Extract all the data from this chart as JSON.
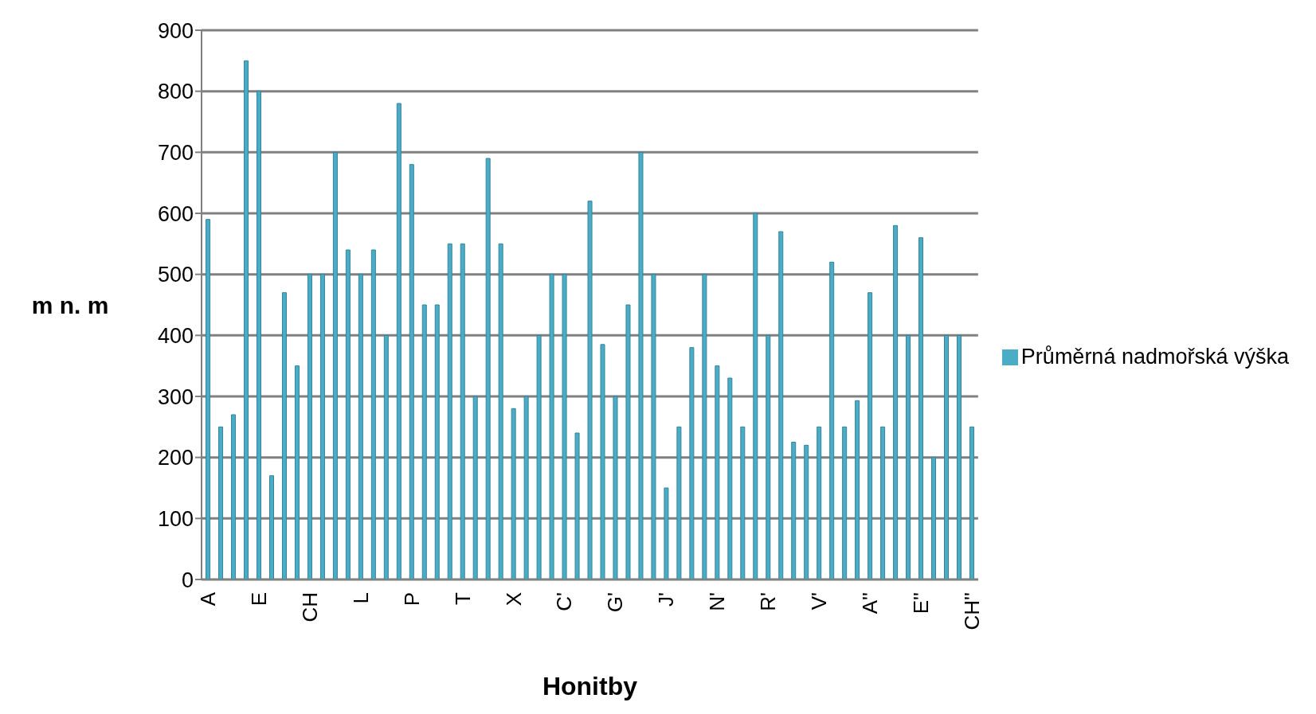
{
  "chart_data": {
    "type": "bar",
    "xlabel": "Honitby",
    "ylabel": "m n. m",
    "categories": [
      "A",
      null,
      null,
      null,
      "E",
      null,
      null,
      null,
      "CH",
      null,
      null,
      null,
      "L",
      null,
      null,
      null,
      "P",
      null,
      null,
      null,
      "T",
      null,
      null,
      null,
      "X",
      null,
      null,
      null,
      "C'",
      null,
      null,
      null,
      "G'",
      null,
      null,
      null,
      "J'",
      null,
      null,
      null,
      "N'",
      null,
      null,
      null,
      "R'",
      null,
      null,
      null,
      "V'",
      null,
      null,
      null,
      "A''",
      null,
      null,
      null,
      "E''",
      null,
      null,
      null,
      "CH''"
    ],
    "series": [
      {
        "name": "Průměrná nadmořská výška",
        "color": "#4bacc6",
        "values": [
          590,
          250,
          270,
          850,
          800,
          170,
          470,
          350,
          500,
          500,
          700,
          540,
          500,
          540,
          400,
          780,
          680,
          450,
          450,
          550,
          550,
          300,
          690,
          550,
          280,
          300,
          400,
          500,
          500,
          240,
          620,
          385,
          300,
          450,
          700,
          500,
          150,
          250,
          380,
          500,
          350,
          330,
          250,
          600,
          400,
          570,
          225,
          220,
          250,
          520,
          250,
          293,
          470,
          250,
          580,
          400,
          560,
          200,
          400,
          400,
          250
        ]
      }
    ],
    "ylim": [
      0,
      900
    ],
    "yticks": [
      0,
      100,
      200,
      300,
      400,
      500,
      600,
      700,
      800,
      900
    ],
    "grid": "y",
    "legend": "right"
  }
}
